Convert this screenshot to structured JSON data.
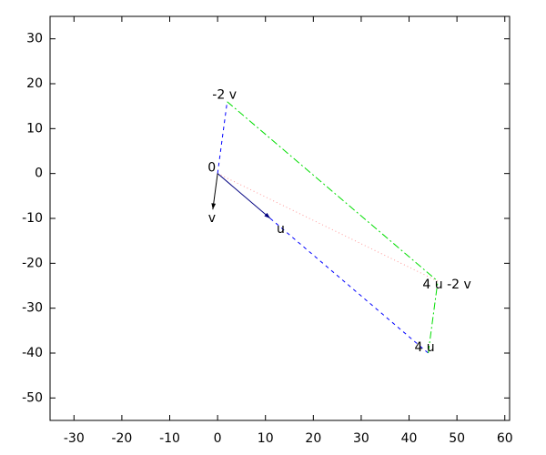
{
  "chart_data": {
    "type": "vector",
    "points": [
      {
        "label": "0",
        "x": 0,
        "y": 0
      },
      {
        "label": "u",
        "x": 11,
        "y": -10
      },
      {
        "label": "v",
        "x": -1,
        "y": -8
      },
      {
        "label": "-2 v",
        "x": 2,
        "y": 16
      },
      {
        "label": "4 u",
        "x": 44,
        "y": -40
      },
      {
        "label": "4 u -2 v",
        "x": 46,
        "y": -24
      }
    ],
    "segments": [
      {
        "from": 0,
        "to": 3,
        "color": "#0000ff",
        "style": "dashed",
        "arrow": false
      },
      {
        "from": 1,
        "to": 4,
        "color": "#0000ff",
        "style": "dashed",
        "arrow": false
      },
      {
        "from": 3,
        "to": 5,
        "color": "#00dd00",
        "style": "dashdot",
        "arrow": false
      },
      {
        "from": 4,
        "to": 5,
        "color": "#00dd00",
        "style": "dashdot",
        "arrow": false
      },
      {
        "from": 0,
        "to": 5,
        "color": "#ff9999",
        "style": "dotted",
        "arrow": false
      },
      {
        "from": 0,
        "to": 1,
        "color": "#000080",
        "style": "solid",
        "arrow": true
      },
      {
        "from": 0,
        "to": 2,
        "color": "#000000",
        "style": "solid",
        "arrow": true
      }
    ],
    "xlim": [
      -35,
      61
    ],
    "ylim": [
      -55,
      35
    ],
    "xticks": [
      -30,
      -20,
      -10,
      0,
      10,
      20,
      30,
      40,
      50,
      60
    ],
    "yticks": [
      -50,
      -40,
      -30,
      -20,
      -10,
      0,
      10,
      20,
      30
    ]
  }
}
